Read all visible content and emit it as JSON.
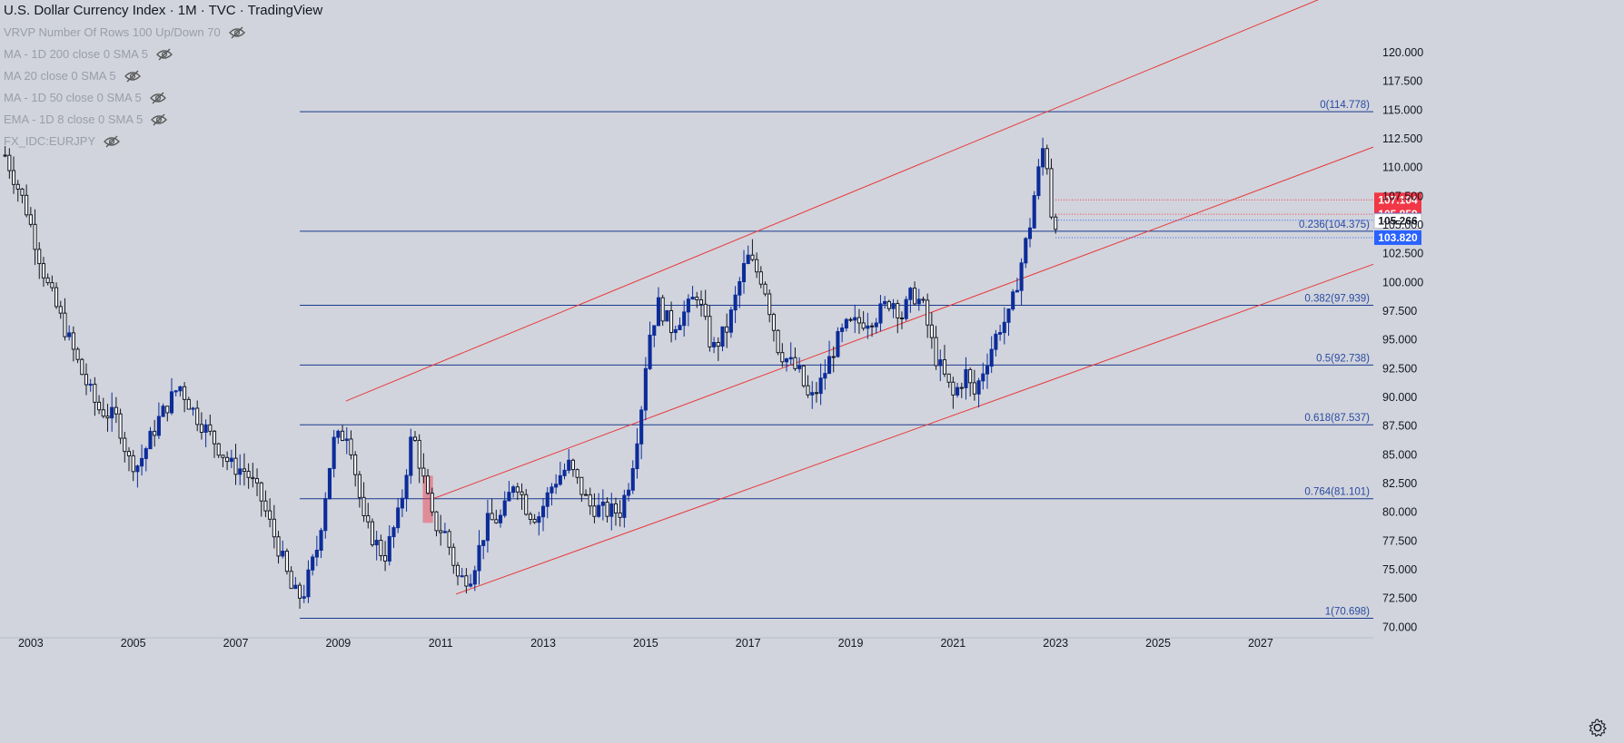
{
  "header": {
    "title": "U.S. Dollar Currency Index · 1M · TVC · TradingView",
    "indicators": [
      {
        "label": "VRVP Number Of Rows 100 Up/Down 70",
        "icon": "eye-off-icon"
      },
      {
        "label": "MA - 1D 200 close 0 SMA 5",
        "icon": "eye-off-icon"
      },
      {
        "label": "MA 20 close 0 SMA 5",
        "icon": "eye-off-icon"
      },
      {
        "label": "MA - 1D 50 close 0 SMA 5",
        "icon": "eye-off-icon"
      },
      {
        "label": "EMA - 1D 8 close 0 SMA 5",
        "icon": "eye-off-icon"
      },
      {
        "label": "FX_IDC:EURJPY",
        "icon": "eye-off-icon"
      }
    ]
  },
  "colors": {
    "background": "#d1d4dc",
    "up": "#0c2c9a",
    "down": "#131722",
    "fib_line": "#1a3a8f",
    "fib_label": "#2a4aa3",
    "channel": "#e8393c",
    "price_red": "#f23645",
    "price_blue": "#2962ff"
  },
  "chart_data": {
    "type": "candlestick",
    "symbol": "U.S. Dollar Currency Index",
    "interval": "1M",
    "x_tick_labels": [
      "2003",
      "2005",
      "2007",
      "2009",
      "2011",
      "2013",
      "2015",
      "2017",
      "2019",
      "2021",
      "2023",
      "2025",
      "2027"
    ],
    "y_tick_labels": [
      "120.000",
      "117.500",
      "115.000",
      "112.500",
      "110.000",
      "107.500",
      "105.000",
      "102.500",
      "100.000",
      "97.500",
      "95.000",
      "92.500",
      "90.000",
      "87.500",
      "85.000",
      "82.500",
      "80.000",
      "77.500",
      "75.000",
      "72.500",
      "70.000"
    ],
    "yrange": [
      69,
      124.5
    ],
    "xrange": [
      2002.4,
      2029.2
    ],
    "fibonacci": {
      "start_x": 2008.25,
      "levels": [
        {
          "label": "0(114.778)",
          "value": 114.778
        },
        {
          "label": "0.236(104.375)",
          "value": 104.375
        },
        {
          "label": "0.382(97.939)",
          "value": 97.939
        },
        {
          "label": "0.5(92.738)",
          "value": 92.738
        },
        {
          "label": "0.618(87.537)",
          "value": 87.537
        },
        {
          "label": "0.764(81.101)",
          "value": 81.101
        },
        {
          "label": "1(70.698)",
          "value": 70.698
        }
      ]
    },
    "channel_lines": [
      {
        "x1": 2009.15,
        "y1": 89.6,
        "x2": 2029.2,
        "y2": 126.5
      },
      {
        "x1": 2010.85,
        "y1": 81.1,
        "x2": 2029.2,
        "y2": 111.7
      },
      {
        "x1": 2011.3,
        "y1": 72.8,
        "x2": 2029.2,
        "y2": 101.5
      }
    ],
    "price_tags": [
      {
        "label": "107.104",
        "value": 107.104,
        "color": "red"
      },
      {
        "label": "105.859",
        "value": 105.859,
        "color": "red"
      },
      {
        "label": "105.340",
        "value": 105.34,
        "color": "blue"
      },
      {
        "label": "105.266",
        "value": 105.266,
        "color": "white"
      },
      {
        "label": "103.820",
        "value": 103.82,
        "color": "blue"
      }
    ],
    "highlight_box": {
      "x_from": 2010.65,
      "x_to": 2010.85,
      "y_from": 79.0,
      "y_to": 83.1
    },
    "anchors": [
      [
        2002.5,
        111.0
      ],
      [
        2002.9,
        106.5
      ],
      [
        2003.3,
        100.0
      ],
      [
        2003.7,
        95.5
      ],
      [
        2004.0,
        92.0
      ],
      [
        2004.3,
        89.0
      ],
      [
        2004.7,
        88.0
      ],
      [
        2004.9,
        84.5
      ],
      [
        2005.1,
        84.0
      ],
      [
        2005.5,
        88.0
      ],
      [
        2005.9,
        91.0
      ],
      [
        2006.2,
        88.5
      ],
      [
        2006.6,
        86.0
      ],
      [
        2006.9,
        84.0
      ],
      [
        2007.2,
        83.5
      ],
      [
        2007.5,
        81.0
      ],
      [
        2007.9,
        76.0
      ],
      [
        2008.1,
        73.0
      ],
      [
        2008.3,
        72.5
      ],
      [
        2008.6,
        77.0
      ],
      [
        2008.9,
        86.0
      ],
      [
        2009.2,
        87.0
      ],
      [
        2009.5,
        79.0
      ],
      [
        2009.9,
        76.0
      ],
      [
        2010.2,
        80.0
      ],
      [
        2010.45,
        87.0
      ],
      [
        2010.6,
        84.0
      ],
      [
        2010.85,
        79.0
      ],
      [
        2011.1,
        78.0
      ],
      [
        2011.35,
        74.0
      ],
      [
        2011.6,
        74.5
      ],
      [
        2011.9,
        79.0
      ],
      [
        2012.2,
        79.5
      ],
      [
        2012.45,
        83.0
      ],
      [
        2012.7,
        80.0
      ],
      [
        2012.9,
        79.5
      ],
      [
        2013.2,
        82.5
      ],
      [
        2013.5,
        84.0
      ],
      [
        2013.9,
        80.5
      ],
      [
        2014.2,
        80.0
      ],
      [
        2014.5,
        80.0
      ],
      [
        2014.7,
        83.0
      ],
      [
        2014.9,
        88.5
      ],
      [
        2015.05,
        95.0
      ],
      [
        2015.25,
        98.0
      ],
      [
        2015.5,
        96.0
      ],
      [
        2015.8,
        97.5
      ],
      [
        2016.0,
        99.0
      ],
      [
        2016.3,
        94.0
      ],
      [
        2016.6,
        96.0
      ],
      [
        2016.9,
        101.0
      ],
      [
        2017.0,
        102.0
      ],
      [
        2017.3,
        100.0
      ],
      [
        2017.6,
        94.0
      ],
      [
        2017.8,
        93.0
      ],
      [
        2018.0,
        92.0
      ],
      [
        2018.2,
        89.5
      ],
      [
        2018.4,
        91.0
      ],
      [
        2018.7,
        94.5
      ],
      [
        2018.9,
        96.0
      ],
      [
        2019.2,
        96.5
      ],
      [
        2019.5,
        97.0
      ],
      [
        2019.8,
        98.5
      ],
      [
        2020.0,
        97.0
      ],
      [
        2020.2,
        99.0
      ],
      [
        2020.4,
        98.0
      ],
      [
        2020.65,
        93.5
      ],
      [
        2020.9,
        91.0
      ],
      [
        2021.0,
        90.0
      ],
      [
        2021.25,
        92.0
      ],
      [
        2021.4,
        90.0
      ],
      [
        2021.6,
        92.5
      ],
      [
        2021.9,
        96.0
      ],
      [
        2022.1,
        97.0
      ],
      [
        2022.3,
        101.0
      ],
      [
        2022.5,
        105.0
      ],
      [
        2022.6,
        108.0
      ],
      [
        2022.75,
        111.5
      ],
      [
        2022.85,
        110.0
      ],
      [
        2022.95,
        104.0
      ],
      [
        2023.0,
        105.3
      ]
    ]
  }
}
